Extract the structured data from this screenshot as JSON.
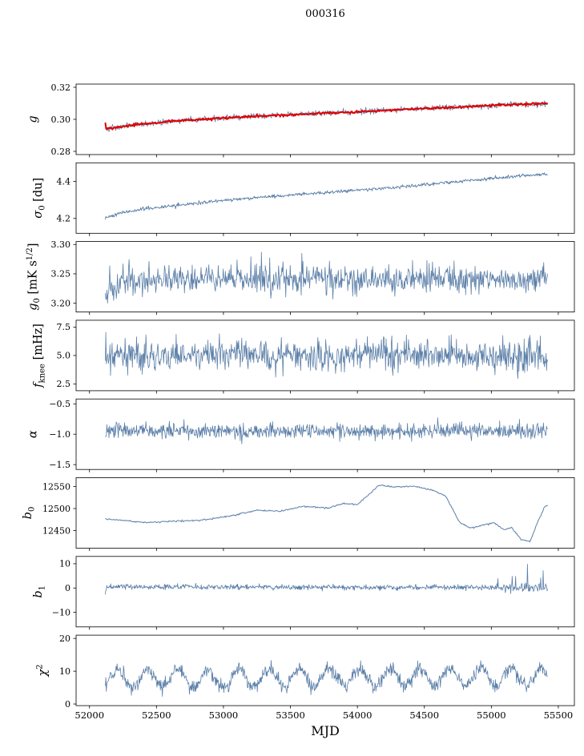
{
  "title": "000316",
  "xlabel": "MJD",
  "chart_data": {
    "type": "line",
    "title": "000316",
    "xlabel": "MJD",
    "grid": false,
    "legend": "none",
    "xlim": [
      51900,
      55620
    ],
    "xticks": [
      {
        "v": 52000,
        "label": "52000"
      },
      {
        "v": 52500,
        "label": "52500"
      },
      {
        "v": 53000,
        "label": "53000"
      },
      {
        "v": 53500,
        "label": "53500"
      },
      {
        "v": 54000,
        "label": "54000"
      },
      {
        "v": 54500,
        "label": "54500"
      },
      {
        "v": 55000,
        "label": "55000"
      },
      {
        "v": 55500,
        "label": "55500"
      }
    ],
    "line_color": "#5b7fa8",
    "fit_color": "#e00000",
    "panels": [
      {
        "name": "g",
        "ylabel": [
          {
            "t": "g",
            "it": true
          }
        ],
        "ylim": [
          0.278,
          0.322
        ],
        "yticks": [
          {
            "v": 0.28,
            "label": "0.28"
          },
          {
            "v": 0.3,
            "label": "0.30"
          },
          {
            "v": 0.32,
            "label": "0.32"
          }
        ],
        "series": [
          {
            "name": "g-measured",
            "color": "#5b7fa8",
            "lw": 0.8,
            "n": 850,
            "seed": 11,
            "x0": 52118,
            "x1": 55420,
            "kx": [
              52118,
              52125,
              52160,
              52300,
              52700,
              53200,
              53800,
              54300,
              54800,
              55100,
              55420
            ],
            "ky": [
              0.298,
              0.294,
              0.2945,
              0.2962,
              0.2993,
              0.3018,
              0.304,
              0.306,
              0.3078,
              0.309,
              0.3098
            ],
            "noise": 0.0009
          },
          {
            "name": "g-fit",
            "color": "#e00000",
            "lw": 2.0,
            "n": 550,
            "seed": 12,
            "x0": 52118,
            "x1": 55420,
            "kx": [
              52118,
              52125,
              52160,
              52300,
              52700,
              53200,
              53800,
              54300,
              54800,
              55100,
              55420
            ],
            "ky": [
              0.2975,
              0.2941,
              0.2946,
              0.2962,
              0.2993,
              0.3018,
              0.304,
              0.306,
              0.3078,
              0.309,
              0.3098
            ],
            "noise": 0.00035
          }
        ]
      },
      {
        "name": "sigma0",
        "ylabel": [
          {
            "t": "σ",
            "it": true
          },
          {
            "t": "0",
            "sub": true
          },
          {
            "t": " [du]"
          }
        ],
        "ylim": [
          4.12,
          4.5
        ],
        "yticks": [
          {
            "v": 4.2,
            "label": "4.2"
          },
          {
            "v": 4.4,
            "label": "4.4"
          }
        ],
        "series": [
          {
            "name": "sigma0",
            "color": "#5b7fa8",
            "lw": 0.9,
            "n": 800,
            "seed": 21,
            "x0": 52118,
            "x1": 55420,
            "kx": [
              52118,
              52250,
              52450,
              52700,
              53000,
              53350,
              53700,
              54050,
              54400,
              54750,
              55050,
              55250,
              55420
            ],
            "ky": [
              4.205,
              4.232,
              4.255,
              4.275,
              4.298,
              4.318,
              4.337,
              4.355,
              4.375,
              4.398,
              4.42,
              4.432,
              4.44
            ],
            "noise": 0.0045
          }
        ]
      },
      {
        "name": "g0",
        "ylabel": [
          {
            "t": "g",
            "it": true
          },
          {
            "t": "0",
            "sub": true
          },
          {
            "t": " [mK s"
          },
          {
            "t": "1/2",
            "sup": true
          },
          {
            "t": "]"
          }
        ],
        "ylim": [
          3.185,
          3.305
        ],
        "yticks": [
          {
            "v": 3.2,
            "label": "3.20"
          },
          {
            "v": 3.25,
            "label": "3.25"
          },
          {
            "v": 3.3,
            "label": "3.30"
          }
        ],
        "series": [
          {
            "name": "g0",
            "color": "#5b7fa8",
            "lw": 0.8,
            "n": 800,
            "seed": 31,
            "x0": 52118,
            "x1": 55420,
            "kx": [
              52118,
              52135,
              52250,
              52500,
              55420
            ],
            "ky": [
              3.207,
              3.218,
              3.238,
              3.242,
              3.24
            ],
            "noise": 0.0125
          }
        ]
      },
      {
        "name": "fknee",
        "ylabel": [
          {
            "t": "f",
            "it": true
          },
          {
            "t": "knee",
            "sub": true
          },
          {
            "t": " [mHz]"
          }
        ],
        "ylim": [
          1.9,
          8.1
        ],
        "yticks": [
          {
            "v": 2.5,
            "label": "2.5"
          },
          {
            "v": 5.0,
            "label": "5.0"
          },
          {
            "v": 7.5,
            "label": "7.5"
          }
        ],
        "series": [
          {
            "name": "fknee",
            "color": "#5b7fa8",
            "lw": 0.8,
            "n": 850,
            "seed": 41,
            "x0": 52118,
            "x1": 55420,
            "kx": [
              52118,
              55420
            ],
            "ky": [
              5.05,
              4.95
            ],
            "noise": 0.72
          }
        ]
      },
      {
        "name": "alpha",
        "ylabel": [
          {
            "t": "α",
            "it": true
          }
        ],
        "ylim": [
          -1.58,
          -0.42
        ],
        "yticks": [
          {
            "v": -1.5,
            "label": "−1.5"
          },
          {
            "v": -1.0,
            "label": "−1.0"
          },
          {
            "v": -0.5,
            "label": "−0.5"
          }
        ],
        "series": [
          {
            "name": "alpha",
            "color": "#5b7fa8",
            "lw": 0.8,
            "n": 850,
            "seed": 51,
            "x0": 52118,
            "x1": 55420,
            "kx": [
              52118,
              55420
            ],
            "ky": [
              -0.95,
              -0.95
            ],
            "noise": 0.062
          }
        ]
      },
      {
        "name": "b0",
        "ylabel": [
          {
            "t": "b",
            "it": true
          },
          {
            "t": "0",
            "sub": true
          }
        ],
        "ylim": [
          12410,
          12570
        ],
        "yticks": [
          {
            "v": 12450,
            "label": "12450"
          },
          {
            "v": 12500,
            "label": "12500"
          },
          {
            "v": 12550,
            "label": "12550"
          }
        ],
        "series": [
          {
            "name": "b0",
            "color": "#5b7fa8",
            "lw": 1.0,
            "n": 600,
            "seed": 61,
            "x0": 52118,
            "x1": 55420,
            "kx": [
              52118,
              52260,
              52420,
              52600,
              52820,
              53050,
              53250,
              53420,
              53600,
              53780,
              53900,
              54000,
              54080,
              54160,
              54280,
              54420,
              54560,
              54660,
              54760,
              54840,
              54930,
              55020,
              55090,
              55150,
              55220,
              55290,
              55340,
              55400,
              55420
            ],
            "ky": [
              12476,
              12473,
              12468,
              12471,
              12473,
              12483,
              12496,
              12494,
              12505,
              12501,
              12512,
              12509,
              12530,
              12553,
              12549,
              12551,
              12542,
              12528,
              12470,
              12456,
              12461,
              12469,
              12452,
              12457,
              12430,
              12425,
              12465,
              12505,
              12507
            ],
            "noise": 0.8
          }
        ]
      },
      {
        "name": "b1",
        "ylabel": [
          {
            "t": "b",
            "it": true
          },
          {
            "t": "1",
            "sub": true
          }
        ],
        "ylim": [
          -16,
          13
        ],
        "yticks": [
          {
            "v": -10,
            "label": "−10"
          },
          {
            "v": 0,
            "label": "0"
          },
          {
            "v": 10,
            "label": "10"
          }
        ],
        "series": [
          {
            "name": "b1",
            "color": "#5b7fa8",
            "lw": 0.8,
            "n": 900,
            "seed": 71,
            "x0": 52118,
            "x1": 55420,
            "kx": [
              52118,
              52128,
              52160,
              55420
            ],
            "ky": [
              -2.5,
              0.3,
              0.5,
              0.2
            ],
            "noise": 0.55,
            "regions": [
              {
                "x0": 55040,
                "x1": 55420,
                "sigma": 0.9,
                "spike_prob": 0.13,
                "spike_sigma": 6.0
              }
            ]
          }
        ]
      },
      {
        "name": "chi2",
        "ylabel": [
          {
            "t": "χ",
            "it": true
          },
          {
            "t": "2",
            "sup": true
          }
        ],
        "ylim": [
          -0.5,
          21
        ],
        "yticks": [
          {
            "v": 0,
            "label": "0"
          },
          {
            "v": 10,
            "label": "10"
          },
          {
            "v": 20,
            "label": "20"
          }
        ],
        "series": [
          {
            "name": "chi2",
            "color": "#5b7fa8",
            "lw": 0.8,
            "n": 900,
            "seed": 81,
            "x0": 52118,
            "x1": 55420,
            "kx": [
              52118,
              55420
            ],
            "ky": [
              7.8,
              8.3
            ],
            "noise": 1.05,
            "osc": {
              "amp": 2.7,
              "period": 226,
              "phase": -0.95
            }
          }
        ]
      }
    ]
  }
}
